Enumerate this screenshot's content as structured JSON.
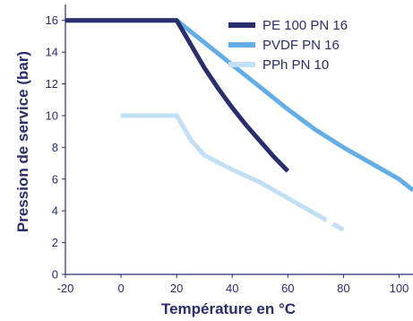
{
  "chart_data": {
    "type": "line",
    "xlabel": "Température en °C",
    "ylabel": "Pression de service (bar)",
    "xlim": [
      -20,
      105
    ],
    "ylim": [
      0,
      17
    ],
    "xticks": [
      "-20",
      "0",
      "20",
      "40",
      "60",
      "80",
      "100"
    ],
    "yticks": [
      "0",
      "2",
      "4",
      "6",
      "8",
      "10",
      "12",
      "14",
      "16"
    ],
    "legend_position": "top-right",
    "grid": false,
    "series": [
      {
        "name": "PE 100 PN 16",
        "color": "#2b2d6e",
        "style": "solid",
        "x": [
          -20,
          20,
          25,
          30,
          35,
          40,
          45,
          50,
          55,
          60
        ],
        "y": [
          16,
          16,
          14.5,
          13.0,
          11.7,
          10.5,
          9.4,
          8.4,
          7.4,
          6.5
        ]
      },
      {
        "name": "PVDF PN 16",
        "color": "#63aee6",
        "style": "solid",
        "x": [
          -20,
          20,
          30,
          40,
          50,
          60,
          70,
          80,
          90,
          100,
          105
        ],
        "y": [
          16,
          16,
          14.6,
          13.2,
          11.8,
          10.4,
          9.1,
          8.0,
          7.0,
          6.0,
          5.3
        ]
      },
      {
        "name": "PPh PN 10",
        "color": "#c2e0f4",
        "style": "solid",
        "x": [
          0,
          20,
          25,
          30,
          40,
          50,
          60,
          70
        ],
        "y": [
          10,
          10,
          8.5,
          7.5,
          6.6,
          5.8,
          4.8,
          3.8
        ],
        "dashed_extension": {
          "x": [
            70,
            80
          ],
          "y": [
            3.8,
            2.8
          ]
        }
      }
    ]
  }
}
